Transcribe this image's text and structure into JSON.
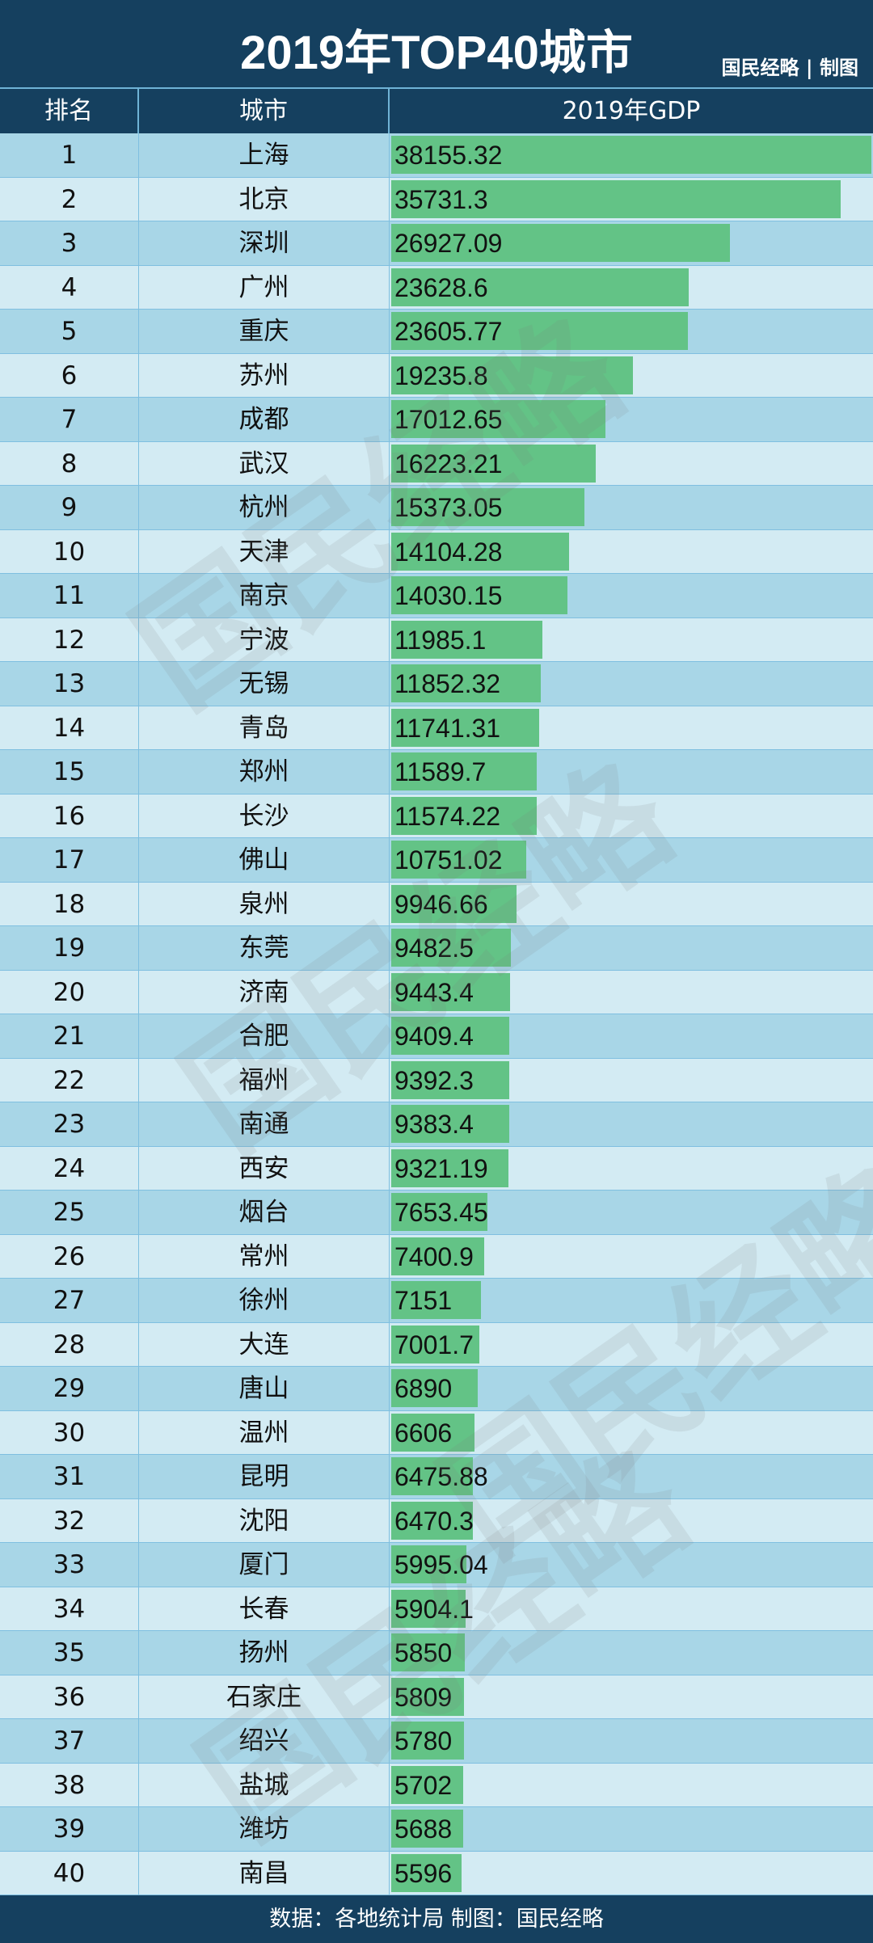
{
  "title": "2019年TOP40城市",
  "credit": "国民经略 | 制图",
  "footer": "数据：各地统计局 制图：国民经略",
  "watermark": "国民经略",
  "chart_data": {
    "type": "bar",
    "orientation": "horizontal",
    "columns": [
      "排名",
      "城市",
      "2019年GDP"
    ],
    "colors": {
      "bar": "#63c386",
      "header": "#15405f",
      "row_odd": "#a8d6e7",
      "row_even": "#d3ebf3"
    },
    "rows": [
      {
        "rank": "1",
        "city": "上海",
        "gdp": 38155.32,
        "label": "38155.32"
      },
      {
        "rank": "2",
        "city": "北京",
        "gdp": 35731.3,
        "label": "35731.3"
      },
      {
        "rank": "3",
        "city": "深圳",
        "gdp": 26927.09,
        "label": "26927.09"
      },
      {
        "rank": "4",
        "city": "广州",
        "gdp": 23628.6,
        "label": "23628.6"
      },
      {
        "rank": "5",
        "city": "重庆",
        "gdp": 23605.77,
        "label": "23605.77"
      },
      {
        "rank": "6",
        "city": "苏州",
        "gdp": 19235.8,
        "label": "19235.8"
      },
      {
        "rank": "7",
        "city": "成都",
        "gdp": 17012.65,
        "label": "17012.65"
      },
      {
        "rank": "8",
        "city": "武汉",
        "gdp": 16223.21,
        "label": "16223.21"
      },
      {
        "rank": "9",
        "city": "杭州",
        "gdp": 15373.05,
        "label": "15373.05"
      },
      {
        "rank": "10",
        "city": "天津",
        "gdp": 14104.28,
        "label": "14104.28"
      },
      {
        "rank": "11",
        "city": "南京",
        "gdp": 14030.15,
        "label": "14030.15"
      },
      {
        "rank": "12",
        "city": "宁波",
        "gdp": 11985.1,
        "label": "11985.1"
      },
      {
        "rank": "13",
        "city": "无锡",
        "gdp": 11852.32,
        "label": "11852.32"
      },
      {
        "rank": "14",
        "city": "青岛",
        "gdp": 11741.31,
        "label": "11741.31"
      },
      {
        "rank": "15",
        "city": "郑州",
        "gdp": 11589.7,
        "label": "11589.7"
      },
      {
        "rank": "16",
        "city": "长沙",
        "gdp": 11574.22,
        "label": "11574.22"
      },
      {
        "rank": "17",
        "city": "佛山",
        "gdp": 10751.02,
        "label": "10751.02"
      },
      {
        "rank": "18",
        "city": "泉州",
        "gdp": 9946.66,
        "label": "9946.66"
      },
      {
        "rank": "19",
        "city": "东莞",
        "gdp": 9482.5,
        "label": "9482.5"
      },
      {
        "rank": "20",
        "city": "济南",
        "gdp": 9443.4,
        "label": "9443.4"
      },
      {
        "rank": "21",
        "city": "合肥",
        "gdp": 9409.4,
        "label": "9409.4"
      },
      {
        "rank": "22",
        "city": "福州",
        "gdp": 9392.3,
        "label": "9392.3"
      },
      {
        "rank": "23",
        "city": "南通",
        "gdp": 9383.4,
        "label": "9383.4"
      },
      {
        "rank": "24",
        "city": "西安",
        "gdp": 9321.19,
        "label": "9321.19"
      },
      {
        "rank": "25",
        "city": "烟台",
        "gdp": 7653.45,
        "label": "7653.45"
      },
      {
        "rank": "26",
        "city": "常州",
        "gdp": 7400.9,
        "label": "7400.9"
      },
      {
        "rank": "27",
        "city": "徐州",
        "gdp": 7151,
        "label": "7151"
      },
      {
        "rank": "28",
        "city": "大连",
        "gdp": 7001.7,
        "label": "7001.7"
      },
      {
        "rank": "29",
        "city": "唐山",
        "gdp": 6890,
        "label": "6890"
      },
      {
        "rank": "30",
        "city": "温州",
        "gdp": 6606,
        "label": "6606"
      },
      {
        "rank": "31",
        "city": "昆明",
        "gdp": 6475.88,
        "label": "6475.88"
      },
      {
        "rank": "32",
        "city": "沈阳",
        "gdp": 6470.3,
        "label": "6470.3"
      },
      {
        "rank": "33",
        "city": "厦门",
        "gdp": 5995.04,
        "label": "5995.04"
      },
      {
        "rank": "34",
        "city": "长春",
        "gdp": 5904.1,
        "label": "5904.1"
      },
      {
        "rank": "35",
        "city": "扬州",
        "gdp": 5850,
        "label": "5850"
      },
      {
        "rank": "36",
        "city": "石家庄",
        "gdp": 5809,
        "label": "5809"
      },
      {
        "rank": "37",
        "city": "绍兴",
        "gdp": 5780,
        "label": "5780"
      },
      {
        "rank": "38",
        "city": "盐城",
        "gdp": 5702,
        "label": "5702"
      },
      {
        "rank": "39",
        "city": "潍坊",
        "gdp": 5688,
        "label": "5688"
      },
      {
        "rank": "40",
        "city": "南昌",
        "gdp": 5596,
        "label": "5596"
      }
    ]
  }
}
